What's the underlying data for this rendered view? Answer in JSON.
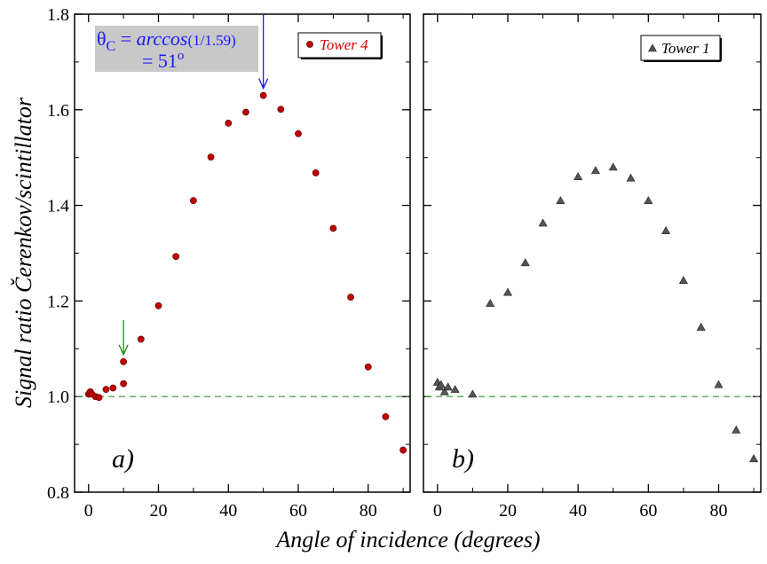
{
  "colors": {
    "tower4": "#c00000",
    "tower1": "#555555",
    "reference": "#2a9a2a",
    "arrow_blue": "#1a1aff",
    "arrow_green": "#1a8a1a",
    "box_bg": "#c8c8c8"
  },
  "annotation": {
    "theta": "θ",
    "sub": "C",
    "eq": " = ",
    "func": "arccos",
    "arg": "(1/1.59)",
    "line2": "= 51",
    "sup": "o"
  },
  "chart_data": [
    {
      "type": "scatter",
      "panel_label": "a)",
      "xlabel": "Angle of incidence (degrees)",
      "ylabel": "Signal ratio Čerenkov/scintillator",
      "xlim": [
        -4,
        92
      ],
      "ylim": [
        0.8,
        1.8
      ],
      "xticks": [
        0,
        20,
        40,
        60,
        80
      ],
      "yticks": [
        0.8,
        1.0,
        1.2,
        1.4,
        1.6,
        1.8
      ],
      "ytick_labels": [
        "0.8",
        "1.0",
        "1.2",
        "1.4",
        "1.6",
        "1.8"
      ],
      "reference_line": 1.0,
      "legend": "top-right",
      "series": [
        {
          "name": "Tower 4",
          "marker": "circle",
          "x": [
            0,
            0.5,
            1,
            2,
            3,
            5,
            7,
            10,
            10,
            15,
            20,
            25,
            30,
            35,
            40,
            45,
            50,
            55,
            60,
            65,
            70,
            75,
            80,
            85,
            90
          ],
          "y": [
            1.005,
            1.01,
            1.005,
            1.0,
            0.998,
            1.015,
            1.018,
            1.027,
            1.073,
            1.12,
            1.19,
            1.293,
            1.41,
            1.501,
            1.572,
            1.595,
            1.63,
            1.601,
            1.55,
            1.468,
            1.352,
            1.208,
            1.062,
            0.958,
            0.888
          ]
        }
      ],
      "arrows": [
        {
          "x": 50,
          "y_from": 1.8,
          "y_to": 1.645,
          "color": "blue"
        },
        {
          "x": 10,
          "y_from": 1.16,
          "y_to": 1.088,
          "color": "green"
        }
      ]
    },
    {
      "type": "scatter",
      "panel_label": "b)",
      "xlim": [
        -4,
        92
      ],
      "ylim": [
        0.8,
        1.8
      ],
      "xticks": [
        0,
        20,
        40,
        60,
        80
      ],
      "yticks": [
        0.8,
        1.0,
        1.2,
        1.4,
        1.6,
        1.8
      ],
      "reference_line": 1.0,
      "legend": "top-right",
      "series": [
        {
          "name": "Tower 1",
          "marker": "triangle",
          "x": [
            0,
            0.5,
            1,
            2,
            3,
            5,
            10,
            15,
            20,
            25,
            30,
            35,
            40,
            45,
            50,
            55,
            60,
            65,
            70,
            75,
            80,
            85,
            90
          ],
          "y": [
            1.03,
            1.02,
            1.025,
            1.01,
            1.02,
            1.015,
            1.005,
            1.195,
            1.218,
            1.28,
            1.363,
            1.41,
            1.46,
            1.473,
            1.48,
            1.457,
            1.41,
            1.347,
            1.243,
            1.145,
            1.025,
            0.93,
            0.87
          ]
        }
      ]
    }
  ]
}
